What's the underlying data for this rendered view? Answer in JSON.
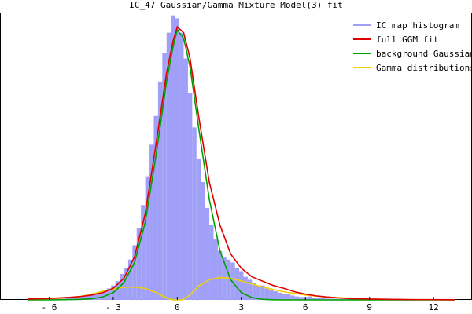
{
  "chart_data": {
    "type": "line",
    "title": "IC_47 Gaussian/Gamma Mixture Model(3) fit",
    "xlabel": "",
    "ylabel": "",
    "xlim": [
      -8.3,
      13.8
    ],
    "ylim": [
      0,
      1.0
    ],
    "x_ticks": [
      -6,
      -3,
      0,
      3,
      6,
      9,
      12
    ],
    "x_tick_labels": [
      "- 6",
      "- 3",
      "0",
      "3",
      "6",
      "9",
      "12"
    ],
    "grid": false,
    "legend_position": "top-right",
    "colors": {
      "histogram": "#a0a0f8",
      "full_fit": "#e00000",
      "background": "#00a000",
      "gamma": "#f0d000"
    },
    "histogram": {
      "name": "IC map histogram",
      "bin_width": 0.2,
      "x": [
        -6.4,
        -6.2,
        -6.0,
        -5.8,
        -5.6,
        -5.4,
        -5.2,
        -5.0,
        -4.8,
        -4.6,
        -4.4,
        -4.2,
        -4.0,
        -3.8,
        -3.6,
        -3.4,
        -3.2,
        -3.0,
        -2.8,
        -2.6,
        -2.4,
        -2.2,
        -2.0,
        -1.8,
        -1.6,
        -1.4,
        -1.2,
        -1.0,
        -0.8,
        -0.6,
        -0.4,
        -0.2,
        0.0,
        0.2,
        0.4,
        0.6,
        0.8,
        1.0,
        1.2,
        1.4,
        1.6,
        1.8,
        2.0,
        2.2,
        2.4,
        2.6,
        2.8,
        3.0,
        3.2,
        3.4,
        3.6,
        3.8,
        4.0,
        4.2,
        4.4,
        4.6,
        4.8,
        5.0,
        5.2,
        5.4,
        5.6,
        5.8,
        6.0,
        6.2,
        6.4,
        6.6,
        6.8,
        7.0,
        7.2,
        7.4,
        7.6,
        7.8,
        8.0,
        8.2,
        8.4,
        8.6,
        8.8,
        9.0
      ],
      "values": [
        0.004,
        0.004,
        0.005,
        0.005,
        0.006,
        0.006,
        0.008,
        0.008,
        0.01,
        0.012,
        0.012,
        0.015,
        0.018,
        0.022,
        0.024,
        0.03,
        0.04,
        0.05,
        0.065,
        0.09,
        0.11,
        0.14,
        0.19,
        0.25,
        0.33,
        0.43,
        0.54,
        0.64,
        0.76,
        0.86,
        0.93,
        0.99,
        0.98,
        0.93,
        0.84,
        0.72,
        0.6,
        0.49,
        0.41,
        0.32,
        0.26,
        0.21,
        0.17,
        0.15,
        0.14,
        0.13,
        0.11,
        0.1,
        0.08,
        0.07,
        0.06,
        0.05,
        0.05,
        0.04,
        0.035,
        0.03,
        0.025,
        0.02,
        0.02,
        0.015,
        0.012,
        0.01,
        0.01,
        0.012,
        0.008,
        0.006,
        0.006,
        0.004,
        0.004,
        0.004,
        0.003,
        0.003,
        0.003,
        0.002,
        0.002,
        0.002,
        0.002,
        0.003
      ]
    },
    "series": [
      {
        "name": "full GGM fit",
        "x": [
          -7.0,
          -6.5,
          -6.0,
          -5.5,
          -5.0,
          -4.5,
          -4.0,
          -3.5,
          -3.0,
          -2.5,
          -2.0,
          -1.5,
          -1.0,
          -0.5,
          -0.2,
          0.0,
          0.3,
          0.6,
          1.0,
          1.5,
          2.0,
          2.5,
          3.0,
          3.5,
          4.0,
          4.5,
          5.0,
          5.5,
          6.0,
          6.5,
          7.0,
          7.5,
          8.0,
          9.0,
          10.0,
          11.0,
          12.0,
          13.0
        ],
        "values": [
          0.003,
          0.004,
          0.005,
          0.007,
          0.009,
          0.012,
          0.017,
          0.025,
          0.04,
          0.075,
          0.15,
          0.3,
          0.54,
          0.79,
          0.9,
          0.95,
          0.93,
          0.84,
          0.64,
          0.41,
          0.26,
          0.16,
          0.11,
          0.08,
          0.065,
          0.05,
          0.04,
          0.028,
          0.02,
          0.014,
          0.01,
          0.007,
          0.005,
          0.003,
          0.002,
          0.001,
          0.001,
          0.0005
        ]
      },
      {
        "name": "background Gaussian",
        "x": [
          -7.0,
          -6.0,
          -5.0,
          -4.5,
          -4.0,
          -3.5,
          -3.0,
          -2.5,
          -2.0,
          -1.5,
          -1.0,
          -0.5,
          -0.2,
          0.0,
          0.3,
          0.6,
          1.0,
          1.5,
          2.0,
          2.5,
          3.0,
          3.5,
          4.0,
          4.5,
          5.0,
          6.0,
          7.0,
          9.0,
          13.0
        ],
        "values": [
          0.0,
          0.0,
          0.001,
          0.002,
          0.004,
          0.01,
          0.025,
          0.06,
          0.13,
          0.27,
          0.5,
          0.76,
          0.88,
          0.94,
          0.91,
          0.81,
          0.6,
          0.35,
          0.17,
          0.07,
          0.025,
          0.008,
          0.002,
          0.0005,
          0.0,
          0.0,
          0.0,
          0.0,
          0.0
        ]
      },
      {
        "name": "Gamma distributions",
        "x": [
          -7.0,
          -6.0,
          -5.0,
          -4.5,
          -4.0,
          -3.5,
          -3.0,
          -2.5,
          -2.0,
          -1.5,
          -1.0,
          -0.7,
          -0.4,
          -0.2,
          0.0,
          0.2,
          0.4,
          0.7,
          1.0,
          1.5,
          2.0,
          2.5,
          3.0,
          3.5,
          4.0,
          4.5,
          5.0,
          6.0,
          7.0,
          8.0,
          9.0,
          10.0,
          11.0,
          12.0,
          13.0
        ],
        "values": [
          0.003,
          0.004,
          0.008,
          0.013,
          0.02,
          0.03,
          0.038,
          0.044,
          0.045,
          0.04,
          0.026,
          0.014,
          0.004,
          0.0,
          0.0,
          0.0,
          0.006,
          0.025,
          0.048,
          0.07,
          0.078,
          0.075,
          0.066,
          0.055,
          0.045,
          0.036,
          0.028,
          0.017,
          0.01,
          0.006,
          0.003,
          0.002,
          0.001,
          0.0005,
          0.0
        ]
      }
    ]
  }
}
